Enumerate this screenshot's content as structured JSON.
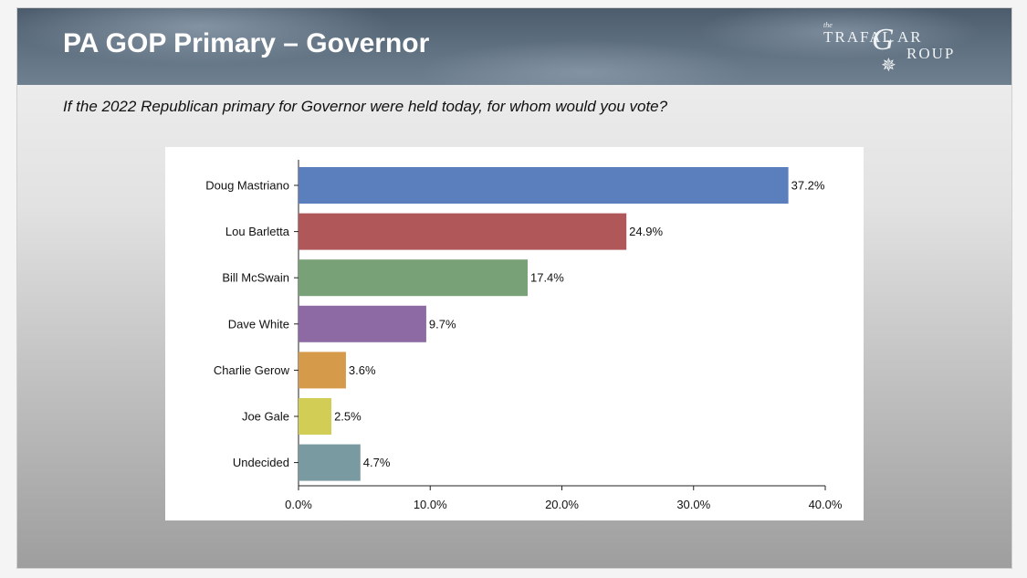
{
  "slide": {
    "title": "PA GOP Primary – Governor",
    "subtitle": "If the 2022 Republican primary for Governor were held today, for whom would you vote?",
    "logo": {
      "the": "the",
      "part1": "TRAFAL",
      "g_letter": "G",
      "part2": "AR",
      "part3": "ROUP",
      "star": "✵"
    }
  },
  "chart_data": {
    "type": "bar",
    "orientation": "horizontal",
    "categories": [
      "Doug Mastriano",
      "Lou Barletta",
      "Bill McSwain",
      "Dave White",
      "Charlie Gerow",
      "Joe Gale",
      "Undecided"
    ],
    "values": [
      37.2,
      24.9,
      17.4,
      9.7,
      3.6,
      2.5,
      4.7
    ],
    "value_labels": [
      "37.2%",
      "24.9%",
      "17.4%",
      "9.7%",
      "3.6%",
      "2.5%",
      "4.7%"
    ],
    "colors": [
      "#5b7fbd",
      "#b0575a",
      "#79a177",
      "#8e6aa5",
      "#d59a4a",
      "#d1cd55",
      "#7a9aa1"
    ],
    "xlim": [
      0,
      40
    ],
    "xticks": [
      0,
      10,
      20,
      30,
      40
    ],
    "xtick_labels": [
      "0.0%",
      "10.0%",
      "20.0%",
      "30.0%",
      "40.0%"
    ],
    "grid": false
  }
}
